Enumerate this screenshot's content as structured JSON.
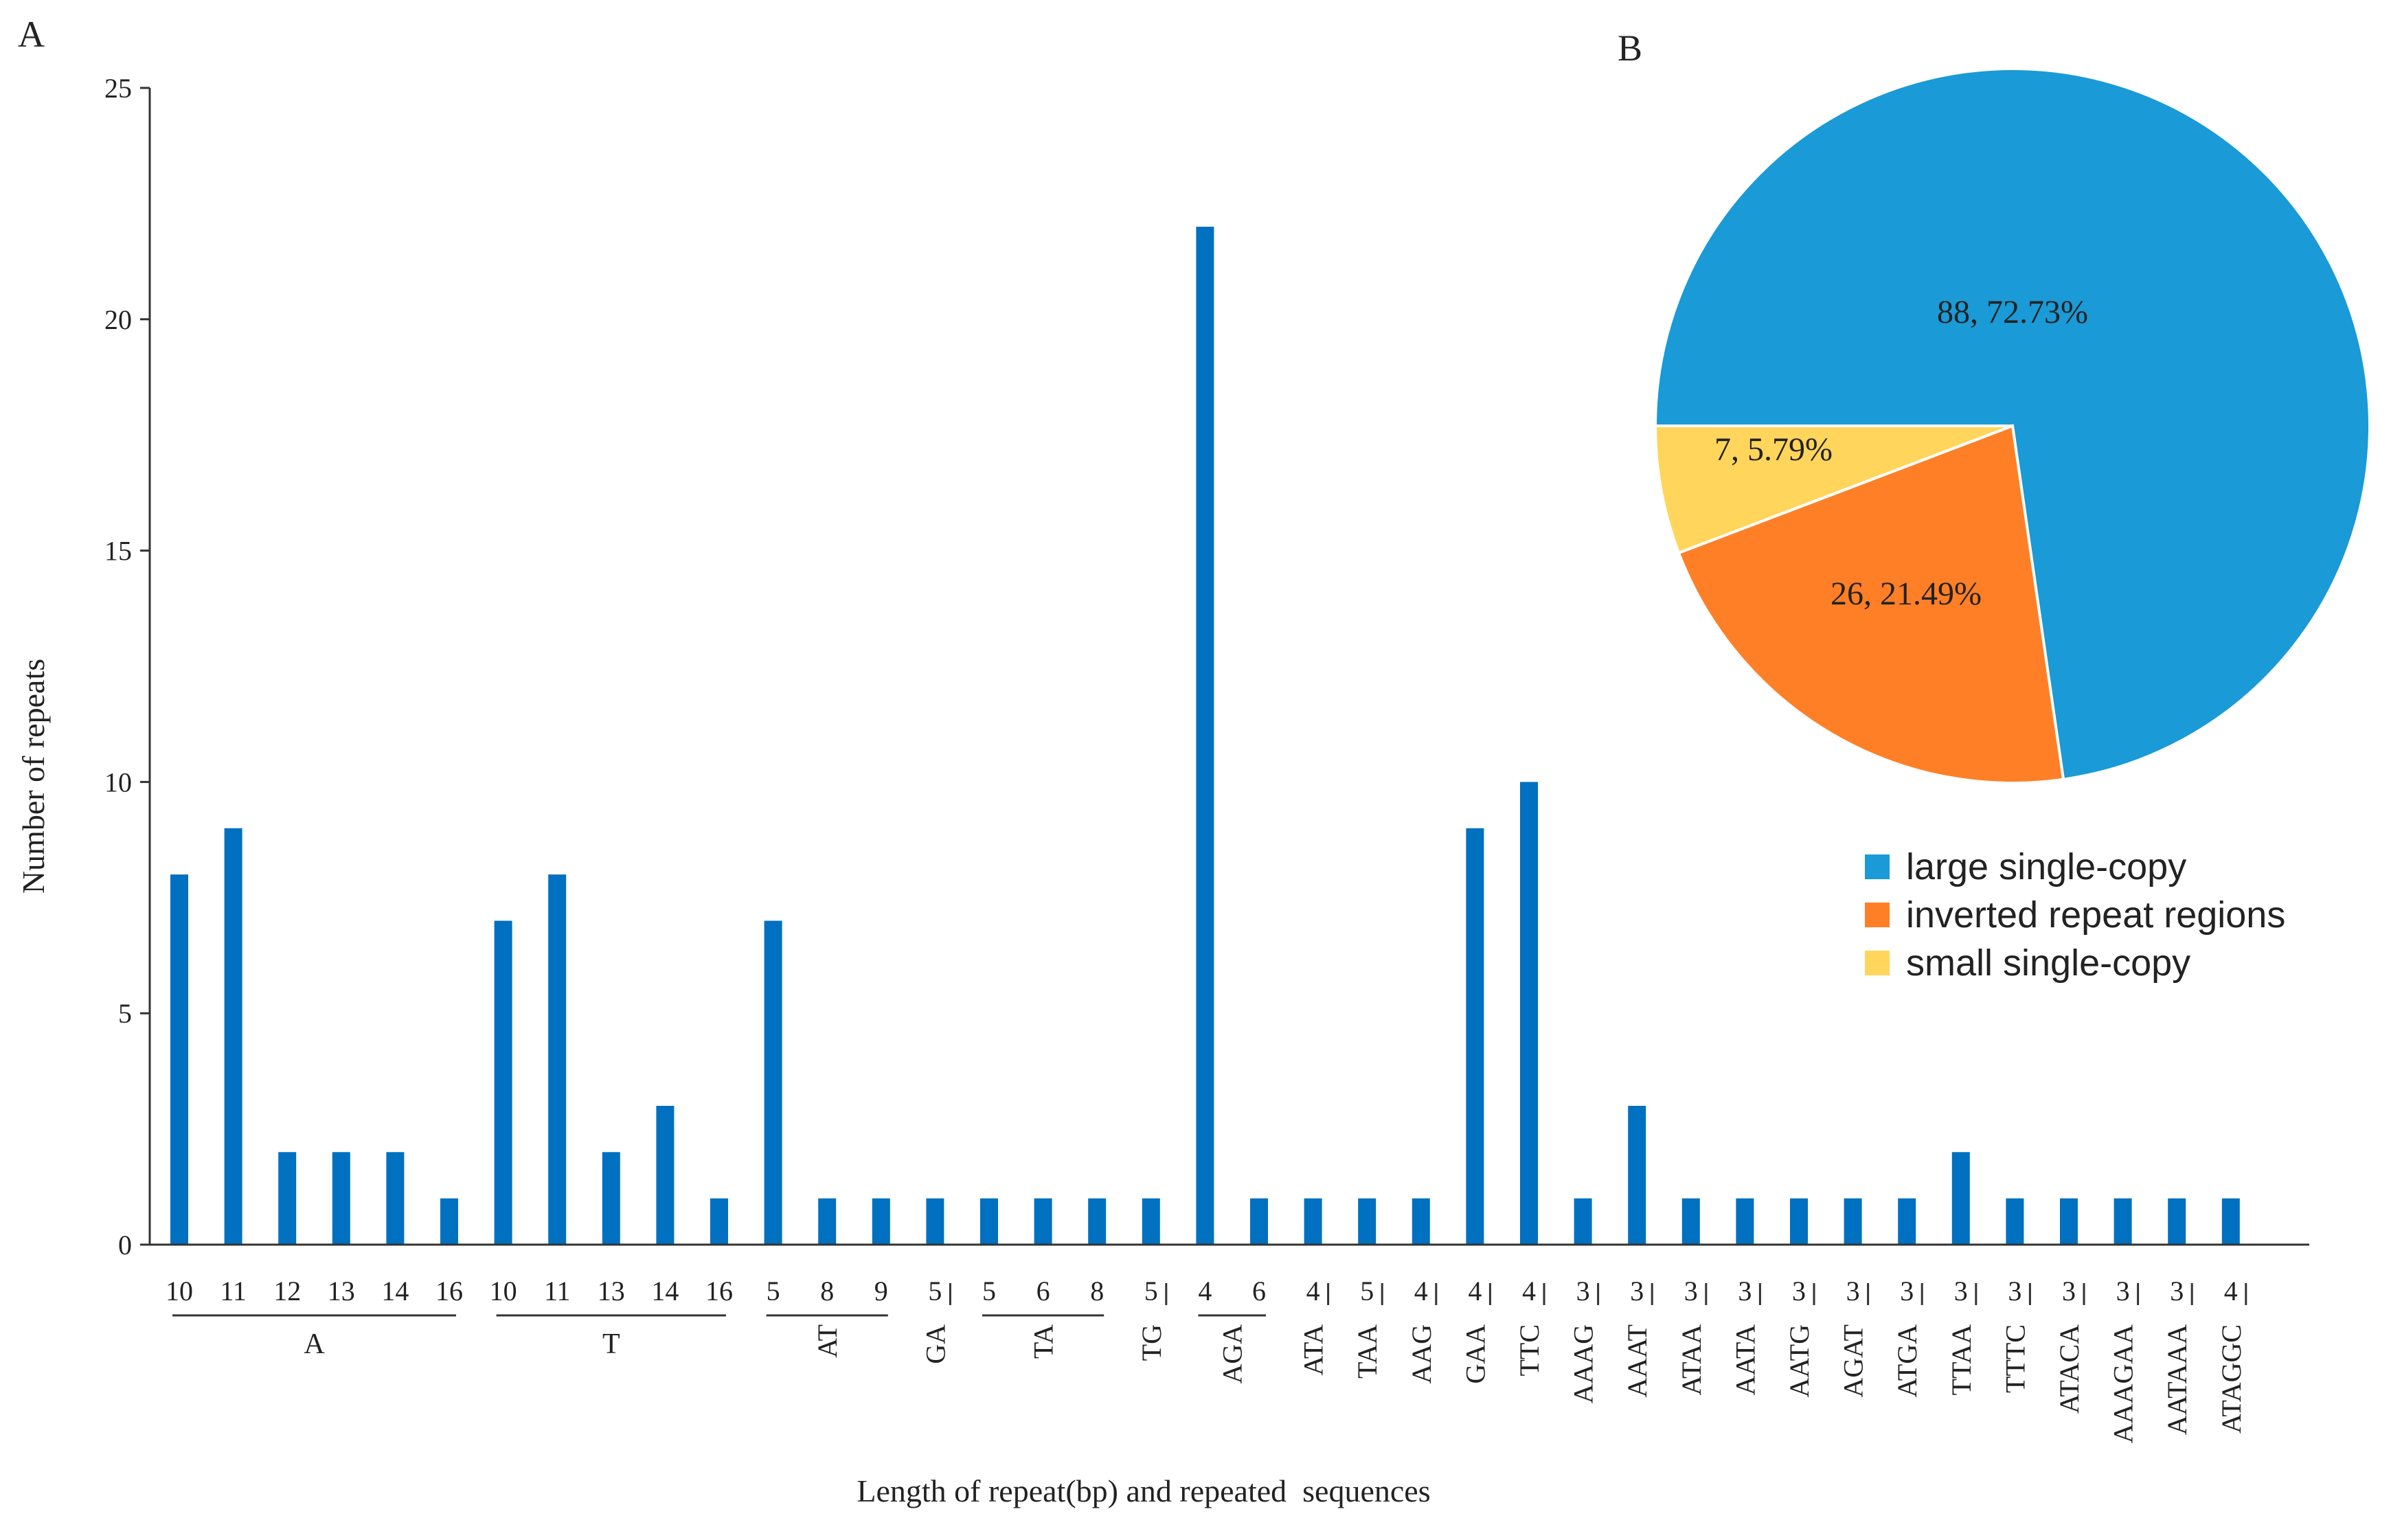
{
  "panel_labels": {
    "a": "A",
    "b": "B"
  },
  "chart_data": [
    {
      "type": "bar",
      "title": "",
      "xlabel": "Length of repeat(bp) and repeated  sequences",
      "ylabel": "Number of repeats",
      "ylim": [
        0,
        25
      ],
      "yticks": [
        "0",
        "5",
        "10",
        "15",
        "20",
        "25"
      ],
      "color": "#0070C0",
      "bars": [
        {
          "len": "10",
          "value": 8
        },
        {
          "len": "11",
          "value": 9
        },
        {
          "len": "12",
          "value": 2
        },
        {
          "len": "13",
          "value": 2
        },
        {
          "len": "14",
          "value": 2
        },
        {
          "len": "16",
          "value": 1
        },
        {
          "len": "10",
          "value": 7
        },
        {
          "len": "11",
          "value": 8
        },
        {
          "len": "13",
          "value": 2
        },
        {
          "len": "14",
          "value": 3
        },
        {
          "len": "16",
          "value": 1
        },
        {
          "len": "5",
          "value": 7
        },
        {
          "len": "8",
          "value": 1
        },
        {
          "len": "9",
          "value": 1
        },
        {
          "len": "5",
          "value": 1
        },
        {
          "len": "5",
          "value": 1
        },
        {
          "len": "6",
          "value": 1
        },
        {
          "len": "8",
          "value": 1
        },
        {
          "len": "5",
          "value": 1
        },
        {
          "len": "4",
          "value": 22
        },
        {
          "len": "6",
          "value": 1
        },
        {
          "len": "4",
          "value": 1
        },
        {
          "len": "5",
          "value": 1
        },
        {
          "len": "4",
          "value": 1
        },
        {
          "len": "4",
          "value": 9
        },
        {
          "len": "4",
          "value": 10
        },
        {
          "len": "3",
          "value": 1
        },
        {
          "len": "3",
          "value": 3
        },
        {
          "len": "3",
          "value": 1
        },
        {
          "len": "3",
          "value": 1
        },
        {
          "len": "3",
          "value": 1
        },
        {
          "len": "3",
          "value": 1
        },
        {
          "len": "3",
          "value": 1
        },
        {
          "len": "3",
          "value": 2
        },
        {
          "len": "3",
          "value": 1
        },
        {
          "len": "3",
          "value": 1
        },
        {
          "len": "3",
          "value": 1
        },
        {
          "len": "3",
          "value": 1
        },
        {
          "len": "4",
          "value": 1
        }
      ],
      "groups": [
        {
          "name": "A",
          "start": 0,
          "end": 5,
          "orient": "h"
        },
        {
          "name": "T",
          "start": 6,
          "end": 10,
          "orient": "h"
        },
        {
          "name": "AT",
          "start": 11,
          "end": 13,
          "orient": "v"
        },
        {
          "name": "GA",
          "start": 14,
          "end": 14,
          "orient": "v"
        },
        {
          "name": "TA",
          "start": 15,
          "end": 17,
          "orient": "v"
        },
        {
          "name": "TG",
          "start": 18,
          "end": 18,
          "orient": "v"
        },
        {
          "name": "AGA",
          "start": 19,
          "end": 20,
          "orient": "v"
        },
        {
          "name": "ATA",
          "start": 21,
          "end": 21,
          "orient": "v"
        },
        {
          "name": "TAA",
          "start": 22,
          "end": 22,
          "orient": "v"
        },
        {
          "name": "AAG",
          "start": 23,
          "end": 23,
          "orient": "v"
        },
        {
          "name": "GAA",
          "start": 24,
          "end": 24,
          "orient": "v"
        },
        {
          "name": "TTC",
          "start": 25,
          "end": 25,
          "orient": "v"
        },
        {
          "name": "AAAG",
          "start": 26,
          "end": 26,
          "orient": "v"
        },
        {
          "name": "AAAT",
          "start": 27,
          "end": 27,
          "orient": "v"
        },
        {
          "name": "ATAA",
          "start": 28,
          "end": 28,
          "orient": "v"
        },
        {
          "name": "AATA",
          "start": 29,
          "end": 29,
          "orient": "v"
        },
        {
          "name": "AATG",
          "start": 30,
          "end": 30,
          "orient": "v"
        },
        {
          "name": "AGAT",
          "start": 31,
          "end": 31,
          "orient": "v"
        },
        {
          "name": "ATGA",
          "start": 32,
          "end": 32,
          "orient": "v"
        },
        {
          "name": "TTAA",
          "start": 33,
          "end": 33,
          "orient": "v"
        },
        {
          "name": "TTTC",
          "start": 34,
          "end": 34,
          "orient": "v"
        },
        {
          "name": "ATACA",
          "start": 35,
          "end": 35,
          "orient": "v"
        },
        {
          "name": "AAAGAA",
          "start": 36,
          "end": 36,
          "orient": "v"
        },
        {
          "name": "AATAAA",
          "start": 37,
          "end": 37,
          "orient": "v"
        },
        {
          "name": "ATAGGC",
          "start": 38,
          "end": 38,
          "orient": "v"
        }
      ]
    },
    {
      "type": "pie",
      "title": "",
      "slices": [
        {
          "name": "large single-copy",
          "value": 88,
          "percent": 72.73,
          "label": "88, 72.73%",
          "color": "#1A9AD6"
        },
        {
          "name": "inverted repeat regions",
          "value": 26,
          "percent": 21.49,
          "label": "26, 21.49%",
          "color": "#FF7F27"
        },
        {
          "name": "small single-copy",
          "value": 7,
          "percent": 5.79,
          "label": "7, 5.79%",
          "color": "#FFD55C"
        }
      ],
      "legend": "bottom-right"
    }
  ]
}
